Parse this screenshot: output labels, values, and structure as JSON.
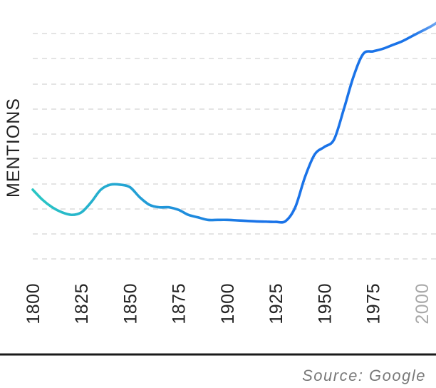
{
  "chart_data": {
    "type": "line",
    "ylabel": "MENTIONS",
    "xlabel": "",
    "title": "",
    "grid": true,
    "source": "Source: Google",
    "x_ticks": [
      "1800",
      "1825",
      "1850",
      "1875",
      "1900",
      "1925",
      "1950",
      "1975",
      "2000"
    ],
    "x_ticks_faded": [
      "2000"
    ],
    "xlim": [
      1800,
      2009
    ],
    "y_value_labels_shown": false,
    "series": [
      {
        "color_start": "#2ac7c4",
        "color_end": "#1a73e8",
        "color_tail": "#6fa6f0",
        "x": [
          1800,
          1805,
          1810,
          1815,
          1820,
          1825,
          1830,
          1835,
          1840,
          1845,
          1850,
          1855,
          1860,
          1865,
          1870,
          1875,
          1880,
          1885,
          1890,
          1895,
          1900,
          1905,
          1910,
          1915,
          1920,
          1925,
          1930,
          1935,
          1940,
          1945,
          1950,
          1955,
          1960,
          1965,
          1970,
          1975,
          1980,
          1985,
          1990,
          1995,
          2000,
          2005,
          2009
        ],
        "y": [
          38,
          34,
          31,
          29,
          28,
          29,
          33,
          38,
          40,
          40,
          39,
          35,
          32,
          31,
          31,
          30,
          28,
          27,
          26,
          26,
          26,
          25.8,
          25.6,
          25.4,
          25.3,
          25.2,
          25.5,
          31,
          43,
          52,
          55,
          58,
          70,
          83,
          92,
          93,
          94,
          95.5,
          97,
          99,
          101,
          103,
          105
        ],
        "style": "smooth"
      }
    ],
    "ylim": [
      0,
      110
    ]
  }
}
